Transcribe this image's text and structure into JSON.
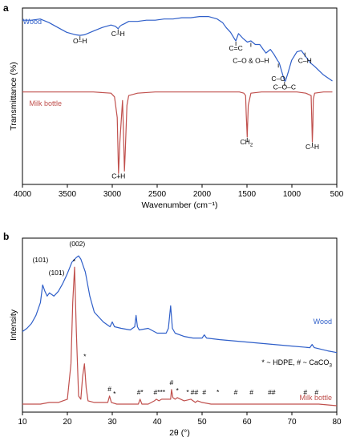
{
  "chart_data": [
    {
      "panel": "a",
      "type": "line",
      "xlabel": "Wavenumber (cm⁻¹)",
      "ylabel": "Transmittance (%)",
      "xlim": [
        4000,
        450
      ],
      "x_reversed": true,
      "xticks": [
        "4000",
        "3500",
        "3000",
        "2500",
        "2000",
        "1500",
        "1000",
        "500"
      ],
      "grid": false,
      "series": [
        {
          "name": "Wood",
          "color": "#2f5fc9",
          "x": [
            4000,
            3900,
            3800,
            3700,
            3600,
            3500,
            3400,
            3350,
            3300,
            3200,
            3100,
            3000,
            2950,
            2920,
            2900,
            2880,
            2850,
            2800,
            2700,
            2600,
            2500,
            2400,
            2300,
            2200,
            2100,
            2000,
            1900,
            1800,
            1740,
            1700,
            1650,
            1600,
            1590,
            1560,
            1510,
            1460,
            1420,
            1370,
            1320,
            1280,
            1250,
            1200,
            1160,
            1120,
            1100,
            1060,
            1040,
            1030,
            1000,
            960,
            900,
            850,
            800,
            750,
            700,
            600,
            500
          ],
          "y": [
            0.9,
            0.9,
            0.91,
            0.88,
            0.84,
            0.8,
            0.78,
            0.775,
            0.78,
            0.81,
            0.84,
            0.86,
            0.85,
            0.83,
            0.85,
            0.86,
            0.87,
            0.89,
            0.89,
            0.9,
            0.9,
            0.91,
            0.91,
            0.92,
            0.92,
            0.93,
            0.93,
            0.91,
            0.88,
            0.84,
            0.8,
            0.74,
            0.73,
            0.79,
            0.75,
            0.72,
            0.73,
            0.7,
            0.7,
            0.66,
            0.63,
            0.66,
            0.62,
            0.57,
            0.55,
            0.45,
            0.4,
            0.4,
            0.47,
            0.57,
            0.64,
            0.65,
            0.6,
            0.55,
            0.52,
            0.45,
            0.4
          ]
        },
        {
          "name": "Milk bottle",
          "color": "#c0504d",
          "x": [
            4000,
            3800,
            3600,
            3400,
            3200,
            3000,
            2960,
            2930,
            2915,
            2900,
            2870,
            2860,
            2848,
            2840,
            2820,
            2800,
            2700,
            2500,
            2300,
            2100,
            1900,
            1700,
            1550,
            1500,
            1480,
            1472,
            1462,
            1450,
            1420,
            1300,
            1100,
            900,
            800,
            740,
            732,
            726,
            720,
            715,
            700,
            600,
            500
          ],
          "y": [
            0.31,
            0.31,
            0.31,
            0.31,
            0.31,
            0.3,
            0.27,
            0.1,
            -0.36,
            -0.1,
            0.24,
            0.0,
            -0.34,
            -0.2,
            0.2,
            0.28,
            0.3,
            0.31,
            0.31,
            0.31,
            0.31,
            0.31,
            0.31,
            0.3,
            0.28,
            0.12,
            -0.06,
            0.2,
            0.3,
            0.31,
            0.31,
            0.31,
            0.3,
            0.28,
            0.06,
            -0.1,
            0.04,
            0.25,
            0.3,
            0.31,
            0.31
          ]
        }
      ],
      "annotations": [
        {
          "text": "O–H",
          "x": 3350,
          "y": 0.71
        },
        {
          "text": "C–H",
          "x": 2920,
          "y": 0.77
        },
        {
          "text": "C=C",
          "x": 1590,
          "y": 0.65
        },
        {
          "text": "C–O & O–H",
          "x": 1420,
          "y": 0.55
        },
        {
          "text": "C–O",
          "x": 1110,
          "y": 0.4
        },
        {
          "text": "C–O–C",
          "x": 1040,
          "y": 0.33
        },
        {
          "text": "C–H",
          "x": 810,
          "y": 0.55
        },
        {
          "text": "C–H",
          "x": 2915,
          "y": -0.4
        },
        {
          "text": "CH",
          "sub": "2",
          "x": 1470,
          "y": -0.12
        },
        {
          "text": "C–H",
          "x": 726,
          "y": -0.16
        }
      ],
      "markers": [
        {
          "x": 3350,
          "y": 0.775,
          "color": "#2f5fc9"
        },
        {
          "x": 2920,
          "y": 0.83,
          "color": "#2f5fc9"
        },
        {
          "x": 1590,
          "y": 0.73,
          "color": "#2f5fc9"
        },
        {
          "x": 1420,
          "y": 0.72,
          "color": "#2f5fc9"
        },
        {
          "x": 1110,
          "y": 0.55,
          "color": "#2f5fc9"
        },
        {
          "x": 1040,
          "y": 0.4,
          "color": "#2f5fc9"
        },
        {
          "x": 810,
          "y": 0.64,
          "color": "#2f5fc9"
        },
        {
          "x": 2915,
          "y": -0.36,
          "color": "#c0504d"
        },
        {
          "x": 1462,
          "y": -0.06,
          "color": "#c0504d"
        },
        {
          "x": 726,
          "y": -0.1,
          "color": "#c0504d"
        }
      ],
      "ylim": [
        -0.45,
        1.0
      ]
    },
    {
      "panel": "b",
      "type": "line",
      "xlabel": "2θ (°)",
      "ylabel": "Intensity",
      "xlim": [
        10,
        80
      ],
      "xticks": [
        "10",
        "20",
        "30",
        "40",
        "50",
        "60",
        "70",
        "80"
      ],
      "grid": false,
      "legend_note": "* ~ HDPE, # ~ CaCO",
      "legend_note_sub": "3",
      "series": [
        {
          "name": "Wood",
          "color": "#2f5fc9",
          "x": [
            10,
            11,
            12,
            13,
            14,
            14.5,
            15,
            15.5,
            16,
            16.5,
            17,
            18,
            19,
            20,
            21,
            22,
            22.5,
            23,
            24,
            25,
            26,
            28,
            29.5,
            30,
            30.5,
            32,
            34,
            35,
            35.3,
            35.6,
            36,
            38,
            40,
            42,
            42.5,
            43,
            43.4,
            44,
            46,
            48,
            50,
            50.5,
            51,
            54,
            58,
            62,
            66,
            70,
            74,
            74.5,
            75,
            78,
            80
          ],
          "y": [
            0.5,
            0.52,
            0.55,
            0.6,
            0.68,
            0.79,
            0.75,
            0.72,
            0.74,
            0.73,
            0.72,
            0.75,
            0.8,
            0.86,
            0.93,
            0.96,
            0.97,
            0.95,
            0.87,
            0.72,
            0.62,
            0.56,
            0.53,
            0.56,
            0.53,
            0.52,
            0.51,
            0.53,
            0.6,
            0.53,
            0.51,
            0.52,
            0.49,
            0.49,
            0.52,
            0.66,
            0.52,
            0.49,
            0.47,
            0.46,
            0.46,
            0.48,
            0.46,
            0.45,
            0.44,
            0.43,
            0.42,
            0.41,
            0.4,
            0.42,
            0.4,
            0.38,
            0.37
          ]
        },
        {
          "name": "Milk bottle",
          "color": "#c0504d",
          "x": [
            10,
            12,
            14,
            16,
            18,
            20,
            20.8,
            21.2,
            21.6,
            22,
            22.5,
            23,
            23.4,
            23.8,
            24.2,
            24.6,
            26,
            28,
            29,
            29.4,
            29.8,
            31,
            34,
            35.8,
            36.2,
            36.6,
            38,
            39.4,
            39.8,
            40.4,
            41,
            42,
            43,
            43.2,
            43.5,
            44,
            44.5,
            46,
            47.5,
            48.5,
            49,
            50,
            52,
            56,
            60,
            64,
            68,
            72,
            76,
            80
          ],
          "y": [
            0.05,
            0.05,
            0.05,
            0.06,
            0.06,
            0.08,
            0.3,
            0.68,
            0.9,
            0.5,
            0.1,
            0.08,
            0.22,
            0.3,
            0.15,
            0.07,
            0.06,
            0.06,
            0.06,
            0.1,
            0.06,
            0.05,
            0.05,
            0.05,
            0.08,
            0.05,
            0.05,
            0.07,
            0.08,
            0.07,
            0.08,
            0.08,
            0.08,
            0.14,
            0.09,
            0.08,
            0.09,
            0.07,
            0.08,
            0.06,
            0.07,
            0.06,
            0.05,
            0.05,
            0.05,
            0.05,
            0.05,
            0.05,
            0.05,
            0.04
          ]
        }
      ],
      "annotations": [
        {
          "text": "(101)",
          "x": 14.0,
          "y": 0.93
        },
        {
          "text": "(101)",
          "x": 17.6,
          "y": 0.85
        },
        {
          "text": "(002)",
          "x": 22.2,
          "y": 1.03
        },
        {
          "text": "*",
          "x": 21.5,
          "y": 0.92
        },
        {
          "text": "*",
          "x": 23.9,
          "y": 0.33
        },
        {
          "text": "#",
          "x": 29.4,
          "y": 0.13
        },
        {
          "text": "*",
          "x": 30.5,
          "y": 0.1
        },
        {
          "text": "#*",
          "x": 36.2,
          "y": 0.11
        },
        {
          "text": "#***",
          "x": 40.5,
          "y": 0.11
        },
        {
          "text": "#",
          "x": 43.2,
          "y": 0.17
        },
        {
          "text": "*",
          "x": 44.5,
          "y": 0.12
        },
        {
          "text": "*",
          "x": 46.8,
          "y": 0.11
        },
        {
          "text": "##",
          "x": 48.3,
          "y": 0.11
        },
        {
          "text": "#",
          "x": 50.5,
          "y": 0.11
        },
        {
          "text": "*",
          "x": 53.5,
          "y": 0.11
        },
        {
          "text": "#",
          "x": 57.5,
          "y": 0.11
        },
        {
          "text": "#",
          "x": 61.0,
          "y": 0.11
        },
        {
          "text": "##",
          "x": 65.5,
          "y": 0.11
        },
        {
          "text": "#",
          "x": 73.0,
          "y": 0.11
        },
        {
          "text": "#",
          "x": 75.5,
          "y": 0.11
        }
      ],
      "ylim": [
        0,
        1.08
      ]
    }
  ],
  "panels": {
    "a": "a",
    "b": "b"
  }
}
